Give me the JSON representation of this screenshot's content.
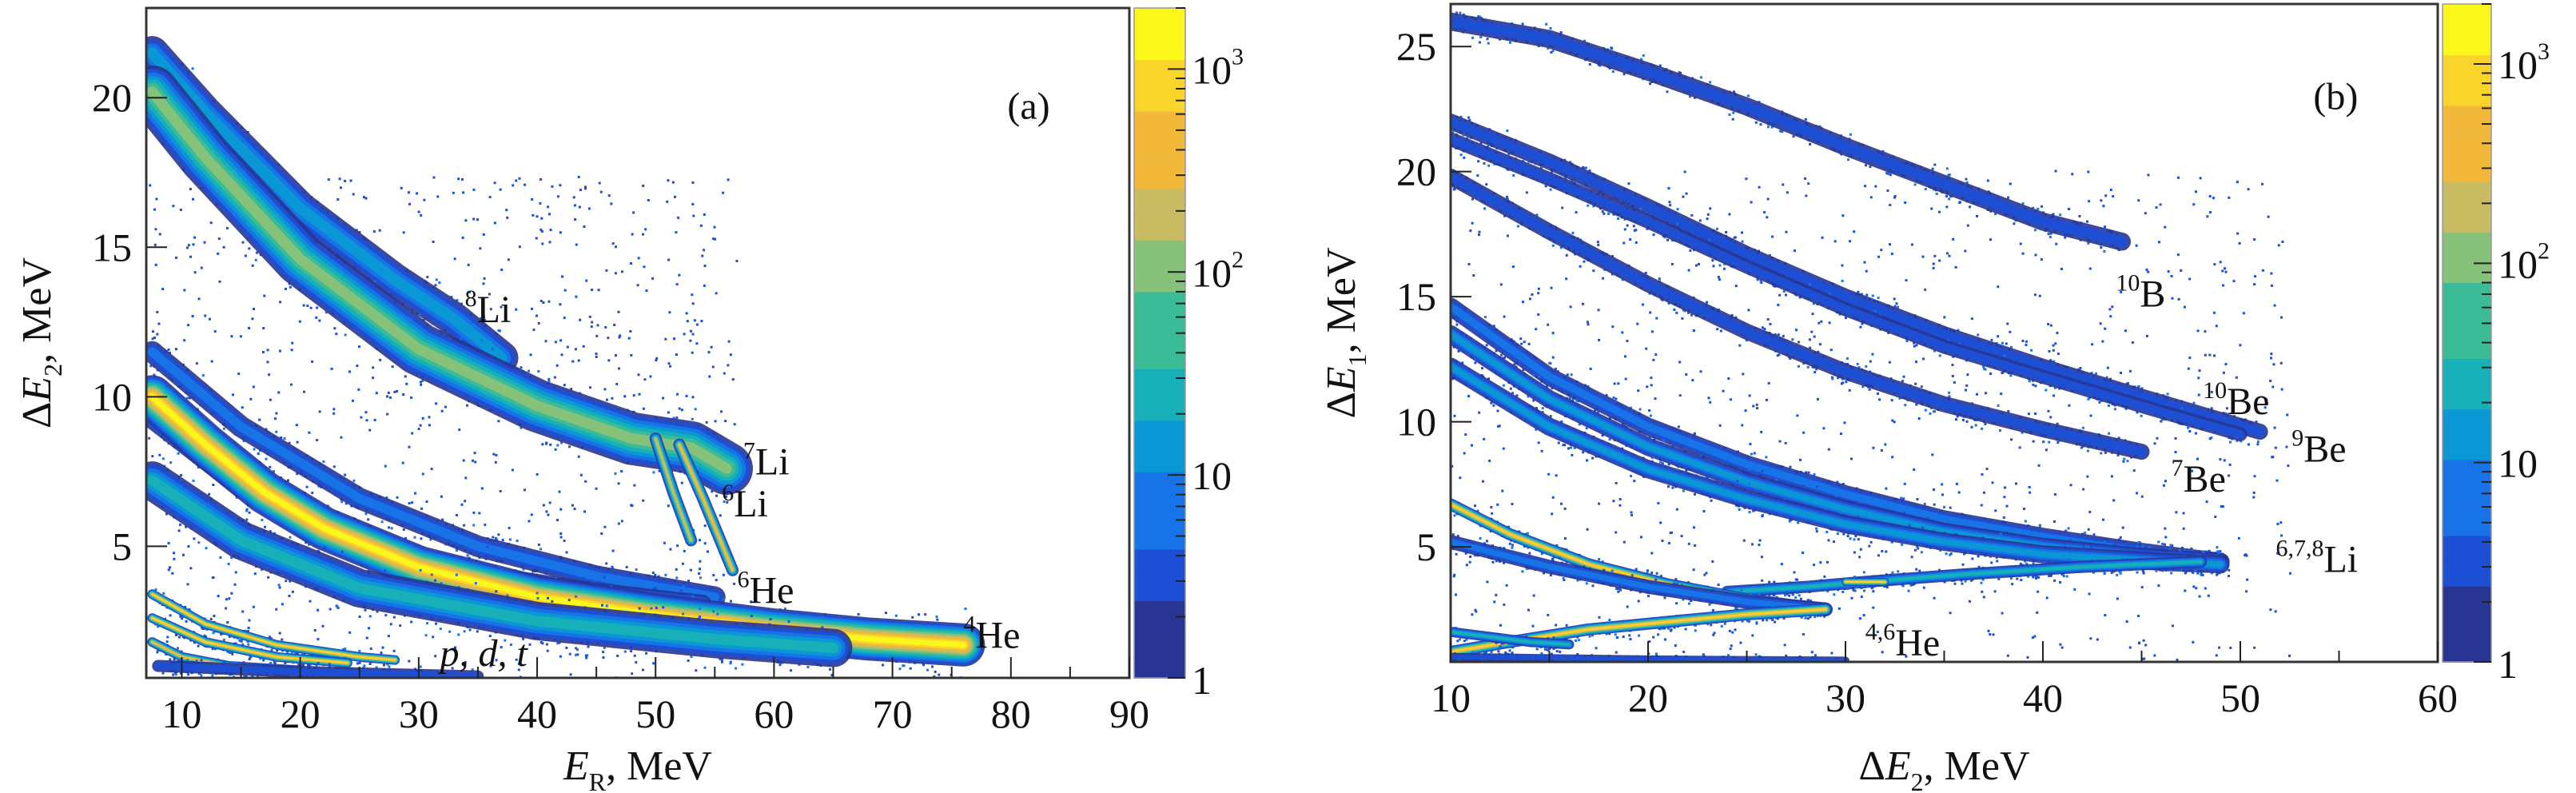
{
  "chart_data": [
    {
      "type": "heatmap",
      "panel_label": "(a)",
      "xlabel": {
        "symbol": "E",
        "subscript": "R",
        "unit": ", MeV"
      },
      "ylabel": {
        "symbol": "ΔE",
        "subscript": "2",
        "unit": ", MeV"
      },
      "xlim": [
        7,
        90
      ],
      "ylim": [
        0.6,
        23
      ],
      "xticks": [
        10,
        20,
        30,
        40,
        50,
        60,
        70,
        80,
        90
      ],
      "yticks": [
        5,
        10,
        15,
        20
      ],
      "colorbar": {
        "scale": "log",
        "range": [
          1,
          2000
        ],
        "tick_labels": [
          {
            "base": "1",
            "exp": ""
          },
          {
            "base": "10",
            "exp": ""
          },
          {
            "base": "10",
            "exp": "2"
          },
          {
            "base": "10",
            "exp": "3"
          }
        ],
        "tick_values": [
          1,
          10,
          100,
          1000
        ]
      },
      "loci": [
        {
          "name": "8Li-upper",
          "peak_counts": 8,
          "spread": 0.7,
          "points": [
            [
              7.5,
              21.5
            ],
            [
              12,
              19.5
            ],
            [
              20,
              16.3
            ],
            [
              28,
              13.9
            ],
            [
              33,
              12.6
            ],
            [
              37,
              11.3
            ]
          ]
        },
        {
          "name": "7Li",
          "peak_counts": 120,
          "spread": 1.1,
          "points": [
            [
              7.5,
              20.2
            ],
            [
              12,
              18
            ],
            [
              20,
              14.6
            ],
            [
              30,
              11.6
            ],
            [
              40,
              9.7
            ],
            [
              48,
              8.6
            ],
            [
              53,
              8.3
            ],
            [
              56,
              7.6
            ]
          ]
        },
        {
          "name": "7Li-punch",
          "peak_counts": 300,
          "spread": 0.25,
          "points": [
            [
              50,
              8.6
            ],
            [
              51.5,
              6.8
            ],
            [
              53,
              5.2
            ]
          ]
        },
        {
          "name": "6Li-punch",
          "peak_counts": 500,
          "spread": 0.25,
          "points": [
            [
              52,
              8.4
            ],
            [
              54,
              6.6
            ],
            [
              56.5,
              4.2
            ]
          ]
        },
        {
          "name": "6Li",
          "peak_counts": 6,
          "spread": 0.45,
          "points": [
            [
              7.5,
              11.5
            ],
            [
              15,
              9
            ],
            [
              25,
              6.6
            ],
            [
              35,
              5
            ],
            [
              45,
              4
            ],
            [
              55,
              3.3
            ]
          ]
        },
        {
          "name": "6He",
          "peak_counts": 4,
          "spread": 0.35,
          "points": [
            [
              7.5,
              9.2
            ],
            [
              15,
              6.9
            ],
            [
              25,
              5.1
            ],
            [
              35,
              4.1
            ],
            [
              45,
              3.5
            ],
            [
              54,
              3.1
            ]
          ]
        },
        {
          "name": "4He",
          "peak_counts": 1500,
          "spread": 0.9,
          "points": [
            [
              7.5,
              10
            ],
            [
              12,
              8.4
            ],
            [
              17,
              6.8
            ],
            [
              22,
              5.6
            ],
            [
              30,
              4.3
            ],
            [
              40,
              3.3
            ],
            [
              50,
              2.7
            ],
            [
              60,
              2.2
            ],
            [
              68,
              1.9
            ],
            [
              76,
              1.7
            ]
          ]
        },
        {
          "name": "4He-low",
          "peak_counts": 20,
          "spread": 0.8,
          "points": [
            [
              7.5,
              7.2
            ],
            [
              15,
              5.2
            ],
            [
              25,
              3.6
            ],
            [
              40,
              2.5
            ],
            [
              55,
              1.9
            ],
            [
              65,
              1.6
            ]
          ]
        },
        {
          "name": "t",
          "peak_counts": 900,
          "spread": 0.2,
          "points": [
            [
              7.5,
              3.4
            ],
            [
              12,
              2.4
            ],
            [
              18,
              1.7
            ],
            [
              25,
              1.3
            ],
            [
              28,
              1.2
            ]
          ]
        },
        {
          "name": "d",
          "peak_counts": 900,
          "spread": 0.2,
          "points": [
            [
              7.5,
              2.6
            ],
            [
              12,
              1.8
            ],
            [
              18,
              1.3
            ],
            [
              24,
              1.1
            ]
          ]
        },
        {
          "name": "p",
          "peak_counts": 600,
          "spread": 0.2,
          "points": [
            [
              7.5,
              1.8
            ],
            [
              10,
              1.3
            ],
            [
              14,
              1.0
            ],
            [
              20,
              0.85
            ]
          ]
        },
        {
          "name": "p-tail",
          "peak_counts": 3,
          "spread": 0.25,
          "points": [
            [
              8,
              1.0
            ],
            [
              20,
              0.8
            ],
            [
              30,
              0.7
            ],
            [
              35,
              0.65
            ]
          ]
        }
      ],
      "annotations": [
        {
          "mass": "8",
          "element": "Li",
          "italic": false
        },
        {
          "mass": "7",
          "element": "Li",
          "italic": false
        },
        {
          "mass": "6",
          "element": "Li",
          "italic": false
        },
        {
          "mass": "6",
          "element": "He",
          "italic": false
        },
        {
          "mass": "4",
          "element": "He",
          "italic": false
        },
        {
          "mass": "",
          "element": "p, d, t",
          "italic": true
        }
      ]
    },
    {
      "type": "heatmap",
      "panel_label": "(b)",
      "xlabel": {
        "symbol": "ΔE",
        "subscript": "2",
        "unit": ", MeV"
      },
      "ylabel": {
        "symbol": "ΔE",
        "subscript": "1",
        "unit": ", MeV"
      },
      "xlim": [
        10,
        60
      ],
      "ylim": [
        0.4,
        26.7
      ],
      "xticks": [
        10,
        20,
        30,
        40,
        50,
        60
      ],
      "yticks": [
        5,
        10,
        15,
        20,
        25
      ],
      "colorbar": {
        "scale": "log",
        "range": [
          1,
          2000
        ],
        "tick_labels": [
          {
            "base": "1",
            "exp": ""
          },
          {
            "base": "10",
            "exp": ""
          },
          {
            "base": "10",
            "exp": "2"
          },
          {
            "base": "10",
            "exp": "3"
          }
        ],
        "tick_values": [
          1,
          10,
          100,
          1000
        ]
      },
      "loci": [
        {
          "name": "10B",
          "peak_counts": 2,
          "spread": 0.45,
          "points": [
            [
              10,
              26
            ],
            [
              15,
              25.3
            ],
            [
              20,
              24
            ],
            [
              25,
              22.6
            ],
            [
              30,
              21
            ],
            [
              35,
              19.5
            ],
            [
              40,
              18
            ],
            [
              44,
              17.2
            ]
          ]
        },
        {
          "name": "10Be",
          "peak_counts": 2,
          "spread": 0.4,
          "points": [
            [
              10,
              22
            ],
            [
              15,
              20.4
            ],
            [
              20,
              18.6
            ],
            [
              25,
              16.7
            ],
            [
              30,
              15
            ],
            [
              35,
              13.5
            ],
            [
              40,
              12.2
            ],
            [
              45,
              11
            ],
            [
              51,
              9.6
            ]
          ]
        },
        {
          "name": "9Be",
          "peak_counts": 2,
          "spread": 0.35,
          "points": [
            [
              10,
              21.3
            ],
            [
              15,
              19.7
            ],
            [
              20,
              18
            ],
            [
              25,
              16.2
            ],
            [
              30,
              14.5
            ],
            [
              35,
              13
            ],
            [
              40,
              11.8
            ],
            [
              46,
              10.4
            ],
            [
              50,
              9.5
            ]
          ]
        },
        {
          "name": "7Be",
          "peak_counts": 3,
          "spread": 0.4,
          "points": [
            [
              10,
              19.8
            ],
            [
              15,
              17.6
            ],
            [
              20,
              15.5
            ],
            [
              25,
              13.6
            ],
            [
              30,
              12
            ],
            [
              35,
              10.7
            ],
            [
              40,
              9.7
            ],
            [
              45,
              8.8
            ]
          ]
        },
        {
          "name": "8Li",
          "peak_counts": 4,
          "spread": 0.45,
          "points": [
            [
              10,
              14.6
            ],
            [
              15,
              11.8
            ],
            [
              20,
              9.8
            ],
            [
              25,
              8.3
            ],
            [
              30,
              7.1
            ],
            [
              35,
              6.1
            ],
            [
              40,
              5.4
            ],
            [
              45,
              4.8
            ],
            [
              49,
              4.4
            ]
          ]
        },
        {
          "name": "7Li",
          "peak_counts": 8,
          "spread": 0.45,
          "points": [
            [
              10,
              13.5
            ],
            [
              15,
              10.9
            ],
            [
              20,
              9
            ],
            [
              25,
              7.6
            ],
            [
              30,
              6.5
            ],
            [
              35,
              5.6
            ],
            [
              40,
              5
            ],
            [
              45,
              4.6
            ],
            [
              49,
              4.4
            ]
          ]
        },
        {
          "name": "6Li",
          "peak_counts": 10,
          "spread": 0.45,
          "points": [
            [
              10,
              12.2
            ],
            [
              15,
              9.8
            ],
            [
              20,
              8.1
            ],
            [
              25,
              6.9
            ],
            [
              30,
              5.9
            ],
            [
              35,
              5.2
            ],
            [
              40,
              4.7
            ],
            [
              46,
              4.4
            ],
            [
              49,
              4.3
            ]
          ]
        },
        {
          "name": "Li-low",
          "peak_counts": 25,
          "spread": 0.3,
          "points": [
            [
              24,
              3.2
            ],
            [
              28,
              3.4
            ],
            [
              31,
              3.6
            ],
            [
              36,
              3.9
            ],
            [
              42,
              4.2
            ],
            [
              48,
              4.4
            ]
          ]
        },
        {
          "name": "4He",
          "peak_counts": 1200,
          "spread": 0.3,
          "points": [
            [
              10,
              6.7
            ],
            [
              13,
              5.5
            ],
            [
              17,
              4.3
            ],
            [
              21,
              3.5
            ],
            [
              25,
              2.9
            ],
            [
              29,
              2.5
            ]
          ]
        },
        {
          "name": "6He",
          "peak_counts": 4,
          "spread": 0.35,
          "points": [
            [
              10,
              5.2
            ],
            [
              15,
              4.2
            ],
            [
              20,
              3.4
            ],
            [
              25,
              2.8
            ],
            [
              29,
              2.5
            ]
          ]
        },
        {
          "name": "He-low",
          "peak_counts": 1200,
          "spread": 0.3,
          "points": [
            [
              10,
              0.8
            ],
            [
              13,
              1.2
            ],
            [
              17,
              1.7
            ],
            [
              21,
              2
            ],
            [
              25,
              2.3
            ],
            [
              29,
              2.5
            ]
          ]
        },
        {
          "name": "Li-low-peak",
          "peak_counts": 900,
          "spread": 0.2,
          "points": [
            [
              30,
              3.6
            ],
            [
              32,
              3.6
            ]
          ]
        },
        {
          "name": "p-band",
          "peak_counts": 20,
          "spread": 0.25,
          "points": [
            [
              10,
              1.6
            ],
            [
              12,
              1.4
            ],
            [
              14,
              1.2
            ],
            [
              16,
              1.1
            ]
          ]
        },
        {
          "name": "bottom",
          "peak_counts": 2,
          "spread": 0.2,
          "points": [
            [
              10,
              0.6
            ],
            [
              20,
              0.5
            ],
            [
              30,
              0.45
            ]
          ]
        }
      ],
      "annotations": [
        {
          "mass": "10",
          "element": "B",
          "italic": false
        },
        {
          "mass": "10",
          "element": "Be",
          "italic": false
        },
        {
          "mass": "9",
          "element": "Be",
          "italic": false
        },
        {
          "mass": "7",
          "element": "Be",
          "italic": false
        },
        {
          "mass": "6,7,8",
          "element": "Li",
          "italic": false
        },
        {
          "mass": "4,6",
          "element": "He",
          "italic": false
        }
      ]
    }
  ],
  "colors": {
    "colormap": [
      "#283593",
      "#1c4fd4",
      "#1873e6",
      "#0a97d6",
      "#18b0b8",
      "#3bbc96",
      "#86c27a",
      "#c9bb62",
      "#f1b83a",
      "#f9d42a",
      "#fbf71a"
    ],
    "frame": "#555555"
  }
}
